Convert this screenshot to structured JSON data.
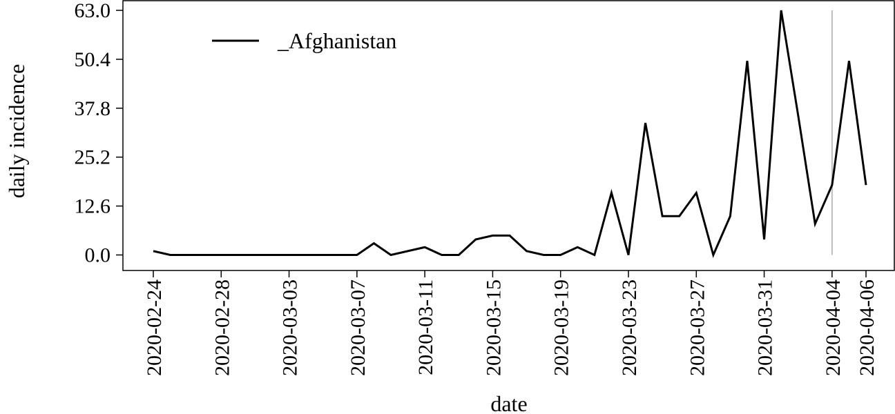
{
  "chart_data": {
    "type": "line",
    "xlabel": "date",
    "ylabel": "daily incidence",
    "ylim": [
      0.0,
      63.0
    ],
    "yticks": [
      "0.0",
      "12.6",
      "25.2",
      "37.8",
      "50.4",
      "63.0"
    ],
    "xticks": [
      "2020-02-24",
      "2020-02-28",
      "2020-03-03",
      "2020-03-07",
      "2020-03-11",
      "2020-03-15",
      "2020-03-19",
      "2020-03-23",
      "2020-03-27",
      "2020-03-31",
      "2020-04-04",
      "2020-04-06"
    ],
    "x_range": [
      "2020-02-24",
      "2020-04-06"
    ],
    "legend_position": "top-left",
    "grid": false,
    "reference_line_date": "2020-04-04",
    "reference_line_color": "#bdbdbd",
    "series": [
      {
        "name": "_Afghanistan",
        "color": "#000000",
        "points": [
          [
            "2020-02-24",
            1
          ],
          [
            "2020-02-25",
            0
          ],
          [
            "2020-02-26",
            0
          ],
          [
            "2020-02-27",
            0
          ],
          [
            "2020-02-28",
            0
          ],
          [
            "2020-02-29",
            0
          ],
          [
            "2020-03-01",
            0
          ],
          [
            "2020-03-02",
            0
          ],
          [
            "2020-03-03",
            0
          ],
          [
            "2020-03-04",
            0
          ],
          [
            "2020-03-05",
            0
          ],
          [
            "2020-03-06",
            0
          ],
          [
            "2020-03-07",
            0
          ],
          [
            "2020-03-08",
            3
          ],
          [
            "2020-03-09",
            0
          ],
          [
            "2020-03-10",
            1
          ],
          [
            "2020-03-11",
            2
          ],
          [
            "2020-03-12",
            0
          ],
          [
            "2020-03-13",
            0
          ],
          [
            "2020-03-14",
            4
          ],
          [
            "2020-03-15",
            5
          ],
          [
            "2020-03-16",
            5
          ],
          [
            "2020-03-17",
            1
          ],
          [
            "2020-03-18",
            0
          ],
          [
            "2020-03-19",
            0
          ],
          [
            "2020-03-20",
            2
          ],
          [
            "2020-03-21",
            0
          ],
          [
            "2020-03-22",
            16
          ],
          [
            "2020-03-23",
            0
          ],
          [
            "2020-03-24",
            34
          ],
          [
            "2020-03-25",
            10
          ],
          [
            "2020-03-26",
            10
          ],
          [
            "2020-03-27",
            16
          ],
          [
            "2020-03-28",
            0
          ],
          [
            "2020-03-29",
            10
          ],
          [
            "2020-03-30",
            50
          ],
          [
            "2020-03-31",
            4
          ],
          [
            "2020-04-01",
            63
          ],
          [
            "2020-04-02",
            36
          ],
          [
            "2020-04-03",
            8
          ],
          [
            "2020-04-04",
            18
          ],
          [
            "2020-04-05",
            50
          ],
          [
            "2020-04-06",
            18
          ]
        ]
      }
    ]
  }
}
